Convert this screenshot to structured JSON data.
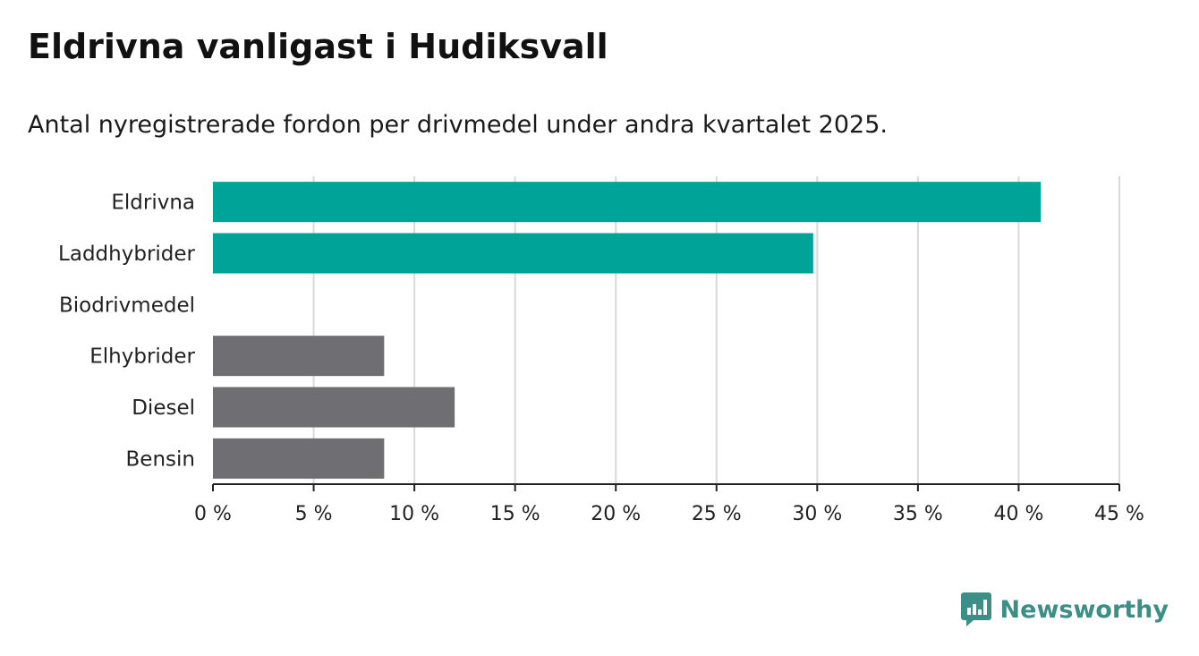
{
  "header": {
    "title": "Eldrivna vanligast i Hudiksvall",
    "subtitle": "Antal nyregistrerade fordon per drivmedel under andra kvartalet 2025."
  },
  "chart_data": {
    "type": "bar",
    "orientation": "horizontal",
    "categories": [
      "Eldrivna",
      "Laddhybrider",
      "Biodrivmedel",
      "Elhybrider",
      "Diesel",
      "Bensin"
    ],
    "values": [
      41.1,
      29.8,
      0,
      8.5,
      12.0,
      8.5
    ],
    "colors": [
      "#00a398",
      "#00a398",
      "#00a398",
      "#6e6e73",
      "#6e6e73",
      "#6e6e73"
    ],
    "xlim": [
      0,
      45
    ],
    "xticks": [
      0,
      5,
      10,
      15,
      20,
      25,
      30,
      35,
      40,
      45
    ],
    "xtick_labels": [
      "0 %",
      "5 %",
      "10 %",
      "15 %",
      "20 %",
      "25 %",
      "30 %",
      "35 %",
      "40 %",
      "45 %"
    ],
    "grid": true
  },
  "branding": {
    "logo_text": "Newsworthy",
    "logo_color": "#3b8f86"
  }
}
